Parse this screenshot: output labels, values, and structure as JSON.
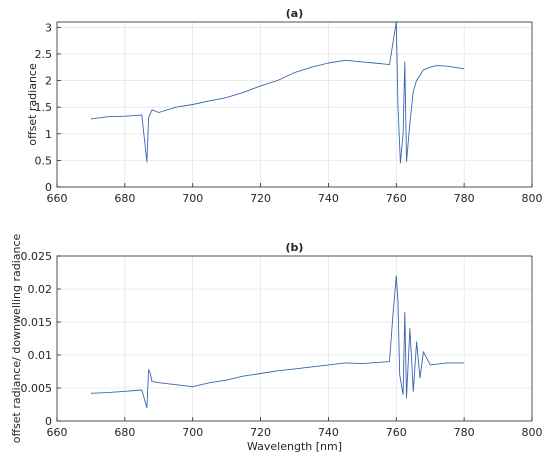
{
  "chart_data": [
    {
      "type": "line",
      "panel": "a",
      "title": "(a)",
      "xlabel": "",
      "ylabel": "offset radiance",
      "xlim": [
        660,
        800
      ],
      "ylim": [
        0,
        3.1
      ],
      "xticks": [
        660,
        680,
        700,
        720,
        740,
        760,
        780,
        800
      ],
      "yticks": [
        0,
        0.5,
        1,
        1.5,
        2,
        2.5,
        3
      ],
      "ytick_labels": [
        "0",
        "0.5",
        "1",
        "1.5",
        "2",
        "2.5",
        "3"
      ],
      "grid": true,
      "series": [
        {
          "color": "#3a64b4",
          "x": [
            670,
            675,
            680,
            685,
            686.5,
            687,
            688,
            690,
            695,
            700,
            705,
            710,
            715,
            720,
            725,
            730,
            735,
            740,
            745,
            750,
            755,
            758,
            759.5,
            760,
            760.5,
            761.2,
            762,
            762.5,
            763,
            764,
            765,
            766,
            767,
            768,
            770,
            772,
            775,
            780
          ],
          "y": [
            1.28,
            1.32,
            1.33,
            1.35,
            0.47,
            1.3,
            1.45,
            1.4,
            1.5,
            1.55,
            1.62,
            1.68,
            1.78,
            1.9,
            2.0,
            2.15,
            2.25,
            2.33,
            2.38,
            2.35,
            2.32,
            2.3,
            2.9,
            3.1,
            1.5,
            0.45,
            1.0,
            2.35,
            0.48,
            1.2,
            1.8,
            2.0,
            2.1,
            2.2,
            2.25,
            2.28,
            2.27,
            2.22
          ]
        }
      ]
    },
    {
      "type": "line",
      "panel": "b",
      "title": "(b)",
      "xlabel": "Wavelength [nm]",
      "ylabel": "offset radiance/ downwelling radiance",
      "xlim": [
        660,
        800
      ],
      "ylim": [
        0,
        0.025
      ],
      "xticks": [
        660,
        680,
        700,
        720,
        740,
        760,
        780,
        800
      ],
      "yticks": [
        0,
        0.005,
        0.01,
        0.015,
        0.02,
        0.025
      ],
      "ytick_labels": [
        "0",
        "0.005",
        "0.01",
        "0.015",
        "0.02",
        "0.025"
      ],
      "grid": true,
      "series": [
        {
          "color": "#3a64b4",
          "x": [
            670,
            675,
            680,
            685,
            686.5,
            687,
            687.5,
            688,
            690,
            695,
            700,
            705,
            710,
            715,
            720,
            725,
            730,
            735,
            740,
            745,
            750,
            755,
            758,
            759,
            760,
            760.5,
            761,
            762,
            762.5,
            763,
            764,
            765,
            766,
            767,
            768,
            770,
            775,
            780
          ],
          "y": [
            0.0042,
            0.0043,
            0.0045,
            0.0047,
            0.002,
            0.0078,
            0.0072,
            0.006,
            0.0058,
            0.0055,
            0.0052,
            0.0058,
            0.0062,
            0.0068,
            0.0072,
            0.0076,
            0.0079,
            0.0082,
            0.0085,
            0.0088,
            0.0087,
            0.0089,
            0.009,
            0.016,
            0.022,
            0.018,
            0.007,
            0.004,
            0.0165,
            0.0035,
            0.014,
            0.0045,
            0.012,
            0.0065,
            0.0105,
            0.0085,
            0.0088,
            0.0088
          ]
        }
      ]
    }
  ]
}
